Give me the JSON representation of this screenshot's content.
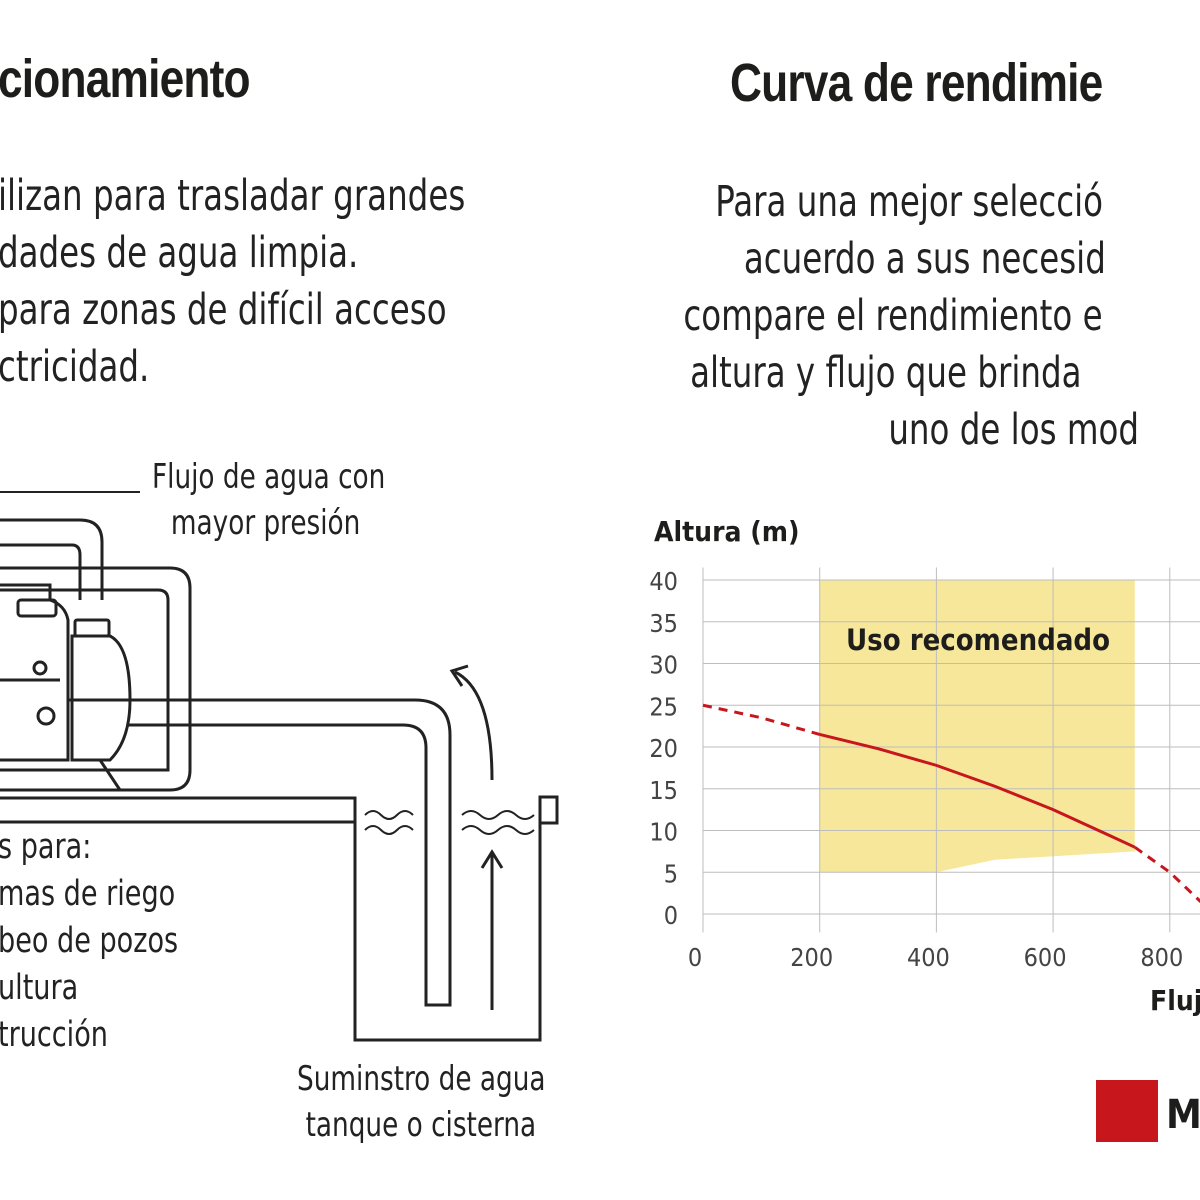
{
  "left": {
    "title": "cionamiento",
    "paragraph": [
      "ilizan para trasladar grandes",
      "dades de agua limpia.",
      "para zonas de difícil acceso",
      "ctricidad."
    ],
    "flow_label": [
      "Flujo de agua con",
      "mayor presión"
    ],
    "uses": [
      "s para:",
      "mas de riego",
      "beo de pozos",
      "ultura",
      "trucción"
    ],
    "supply_label": [
      "Suminstro de agua",
      "tanque o cisterna"
    ]
  },
  "right": {
    "title": "Curva de rendimie",
    "paragraph": [
      "Para una mejor selecció",
      "acuerdo a sus necesid",
      "compare el rendimiento e",
      "altura y flujo que brinda",
      "uno de los mod"
    ],
    "legend_label": "MC",
    "legend_color": "#c8161d"
  },
  "chart_data": {
    "type": "line",
    "ylabel": "Altura (m)",
    "xlabel": "Flujo",
    "x_ticks": [
      0,
      200,
      400,
      600,
      800
    ],
    "y_ticks": [
      0,
      5,
      10,
      15,
      20,
      25,
      30,
      35,
      40
    ],
    "ylim": [
      0,
      40
    ],
    "grid": true,
    "recommended_zone": {
      "label": "Uso recomendado",
      "x_range": [
        200,
        740
      ],
      "y_top": 40,
      "bottom_edge": [
        [
          200,
          5
        ],
        [
          400,
          5
        ],
        [
          500,
          6.5
        ],
        [
          740,
          7.5
        ]
      ],
      "color": "#f7e79b"
    },
    "series": [
      {
        "name": "MC",
        "color": "#c8161d",
        "dashed_segments": [
          [
            [
              0,
              25
            ],
            [
              100,
              23.5
            ],
            [
              200,
              21.5
            ]
          ],
          [
            [
              740,
              8
            ],
            [
              800,
              5
            ],
            [
              860,
              1
            ]
          ]
        ],
        "solid_segment": [
          [
            200,
            21.5
          ],
          [
            300,
            19.8
          ],
          [
            400,
            17.8
          ],
          [
            500,
            15.3
          ],
          [
            600,
            12.5
          ],
          [
            700,
            9.3
          ],
          [
            740,
            8
          ]
        ]
      }
    ]
  }
}
